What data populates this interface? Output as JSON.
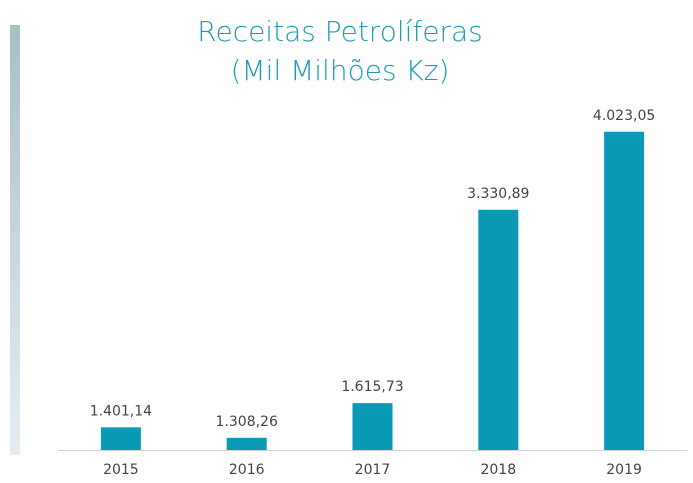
{
  "chart_data": {
    "type": "bar",
    "title": "Receitas Petrolíferas",
    "subtitle": "(Mil Milhões Kz)",
    "categories": [
      "2015",
      "2016",
      "2017",
      "2018",
      "2019"
    ],
    "values": [
      1401.14,
      1308.26,
      1615.73,
      3330.89,
      4023.05
    ],
    "value_labels": [
      "1.401,14",
      "1.308,26",
      "1.615,73",
      "3.330,89",
      "4.023,05"
    ],
    "color": "#0a9ab5",
    "ylim": [
      1200,
      4500
    ]
  }
}
